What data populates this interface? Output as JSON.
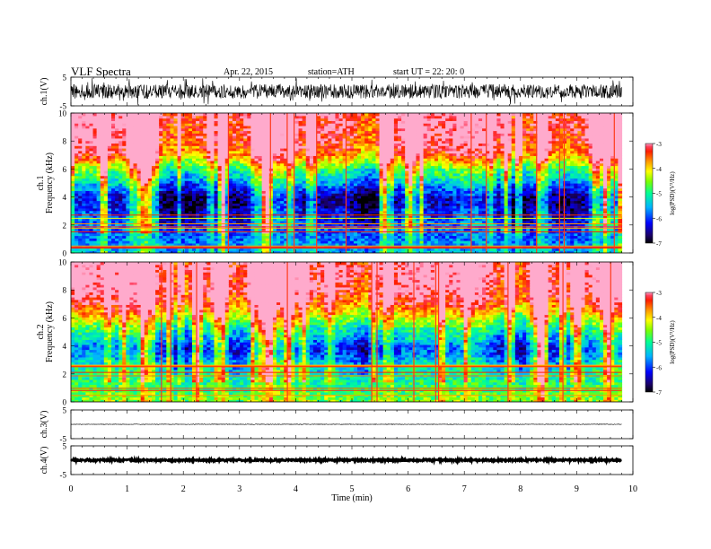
{
  "header": {
    "title": "VLF  Spectra",
    "date": "Apr. 22, 2015",
    "station": "station=ATH",
    "start": "start  UT  =   22: 20: 0"
  },
  "chart_data": [
    {
      "type": "line",
      "ylabel": "ch.1(V)",
      "ylim": [
        -5,
        5
      ],
      "yticks": [
        "5",
        "-5"
      ],
      "series": [
        {
          "x_range_min": [
            0,
            9.8
          ],
          "amplitude_V": 2.5
        }
      ]
    },
    {
      "type": "heatmap",
      "ylabel_top": "ch.1",
      "ylabel": "Frequency  (kHz)",
      "ylim": [
        0,
        10
      ],
      "yticks": [
        "0",
        "2",
        "4",
        "6",
        "8",
        "10"
      ],
      "x_range_min": [
        0,
        9.8
      ],
      "colorbar": {
        "label": "log(PSD)(V²/Hz)",
        "range": [
          -7,
          -3
        ],
        "ticks": [
          "-3",
          "-4",
          "-5",
          "-6",
          "-7"
        ]
      },
      "mean_log_psd_by_frequency": {
        "freq_kHz": [
          0,
          1,
          2,
          3,
          3.5,
          4,
          4.5,
          5,
          5.5,
          6,
          7,
          8,
          10
        ],
        "log_psd": [
          -5.5,
          -5.8,
          -6.0,
          -6.3,
          -6.5,
          -6.5,
          -6.1,
          -5.6,
          -5.2,
          -4.8,
          -3.6,
          -3.2,
          -3.0
        ]
      }
    },
    {
      "type": "heatmap",
      "ylabel_top": "ch.2",
      "ylabel": "Frequency  (kHz)",
      "ylim": [
        0,
        10
      ],
      "yticks": [
        "0",
        "2",
        "4",
        "6",
        "8",
        "10"
      ],
      "x_range_min": [
        0,
        9.8
      ],
      "colorbar": {
        "label": "log(PSD)(V²/Hz)",
        "range": [
          -7,
          -3
        ],
        "ticks": [
          "-3",
          "-4",
          "-5",
          "-6",
          "-7"
        ]
      },
      "mean_log_psd_by_frequency": {
        "freq_kHz": [
          0,
          1,
          2,
          3,
          3.5,
          4,
          4.5,
          5,
          5.5,
          6,
          7,
          8,
          10
        ],
        "log_psd": [
          -4.6,
          -4.9,
          -5.2,
          -5.6,
          -6.0,
          -6.0,
          -5.6,
          -5.3,
          -4.9,
          -4.4,
          -3.5,
          -3.1,
          -3.0
        ]
      }
    },
    {
      "type": "line",
      "ylabel": "ch.3(V)",
      "ylim": [
        -5,
        5
      ],
      "yticks": [
        "5",
        "-5"
      ],
      "series": [
        {
          "x_range_min": [
            0,
            9.8
          ],
          "amplitude_V": 0.1
        }
      ]
    },
    {
      "type": "line",
      "ylabel": "ch.4(V)",
      "ylim": [
        -5,
        5
      ],
      "yticks": [
        "5",
        "-5"
      ],
      "series": [
        {
          "x_range_min": [
            0,
            9.8
          ],
          "amplitude_V": 0.3
        }
      ]
    }
  ],
  "xaxis": {
    "label": "Time  (min)",
    "range": [
      0,
      10
    ],
    "ticks": [
      "0",
      "1",
      "2",
      "3",
      "4",
      "5",
      "6",
      "7",
      "8",
      "9",
      "10"
    ]
  }
}
